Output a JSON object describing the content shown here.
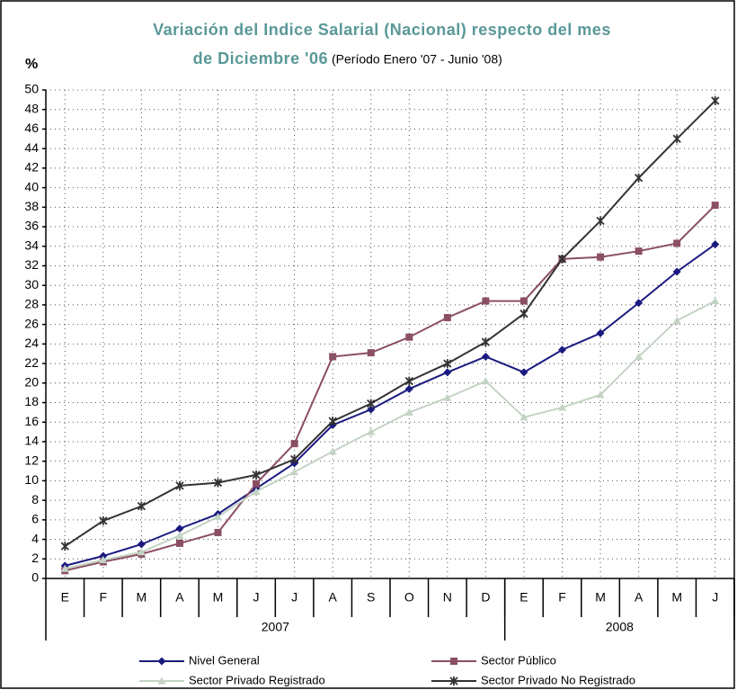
{
  "chart_data": {
    "type": "line",
    "title": "Variación del Indice Salarial (Nacional) respecto del mes",
    "title_line2": "de Diciembre '06",
    "subtitle": "(Período Enero '07 - Junio '08)",
    "y_label": "%",
    "categories": [
      "E",
      "F",
      "M",
      "A",
      "M",
      "J",
      "J",
      "A",
      "S",
      "O",
      "N",
      "D",
      "E",
      "F",
      "M",
      "A",
      "M",
      "J"
    ],
    "x_groups": [
      {
        "label": "2007",
        "span": 12
      },
      {
        "label": "2008",
        "span": 6
      }
    ],
    "ylim": [
      0,
      50
    ],
    "yticks": [
      0,
      2,
      4,
      6,
      8,
      10,
      12,
      14,
      16,
      18,
      20,
      22,
      24,
      26,
      28,
      30,
      32,
      34,
      36,
      38,
      40,
      42,
      44,
      46,
      48,
      50
    ],
    "grid": true,
    "series": [
      {
        "name": "Nivel General",
        "color": "#1a1a80",
        "marker": "diamond",
        "values": [
          1.3,
          2.3,
          3.5,
          5.1,
          6.6,
          9.2,
          11.8,
          15.7,
          17.3,
          19.4,
          21.1,
          22.7,
          21.1,
          23.4,
          25.1,
          28.2,
          31.4,
          34.2
        ]
      },
      {
        "name": "Sector Público",
        "color": "#8b4f63",
        "marker": "square",
        "values": [
          0.8,
          1.7,
          2.5,
          3.6,
          4.7,
          9.7,
          13.8,
          22.7,
          23.1,
          24.7,
          26.7,
          28.4,
          28.4,
          32.7,
          32.9,
          33.5,
          34.3,
          38.2
        ]
      },
      {
        "name": "Sector Privado Registrado",
        "color": "#c4d4c4",
        "marker": "triangle",
        "values": [
          1.0,
          1.9,
          2.7,
          4.4,
          6.3,
          8.9,
          10.9,
          13.0,
          15.0,
          17.0,
          18.5,
          20.2,
          16.5,
          17.5,
          18.8,
          22.7,
          26.4,
          28.4
        ]
      },
      {
        "name": "Sector Privado No Registrado",
        "color": "#333333",
        "marker": "star",
        "values": [
          3.3,
          5.9,
          7.4,
          9.5,
          9.8,
          10.6,
          12.2,
          16.1,
          17.9,
          20.2,
          22.0,
          24.2,
          27.1,
          32.7,
          36.6,
          41.0,
          45.0,
          48.9
        ]
      }
    ]
  }
}
